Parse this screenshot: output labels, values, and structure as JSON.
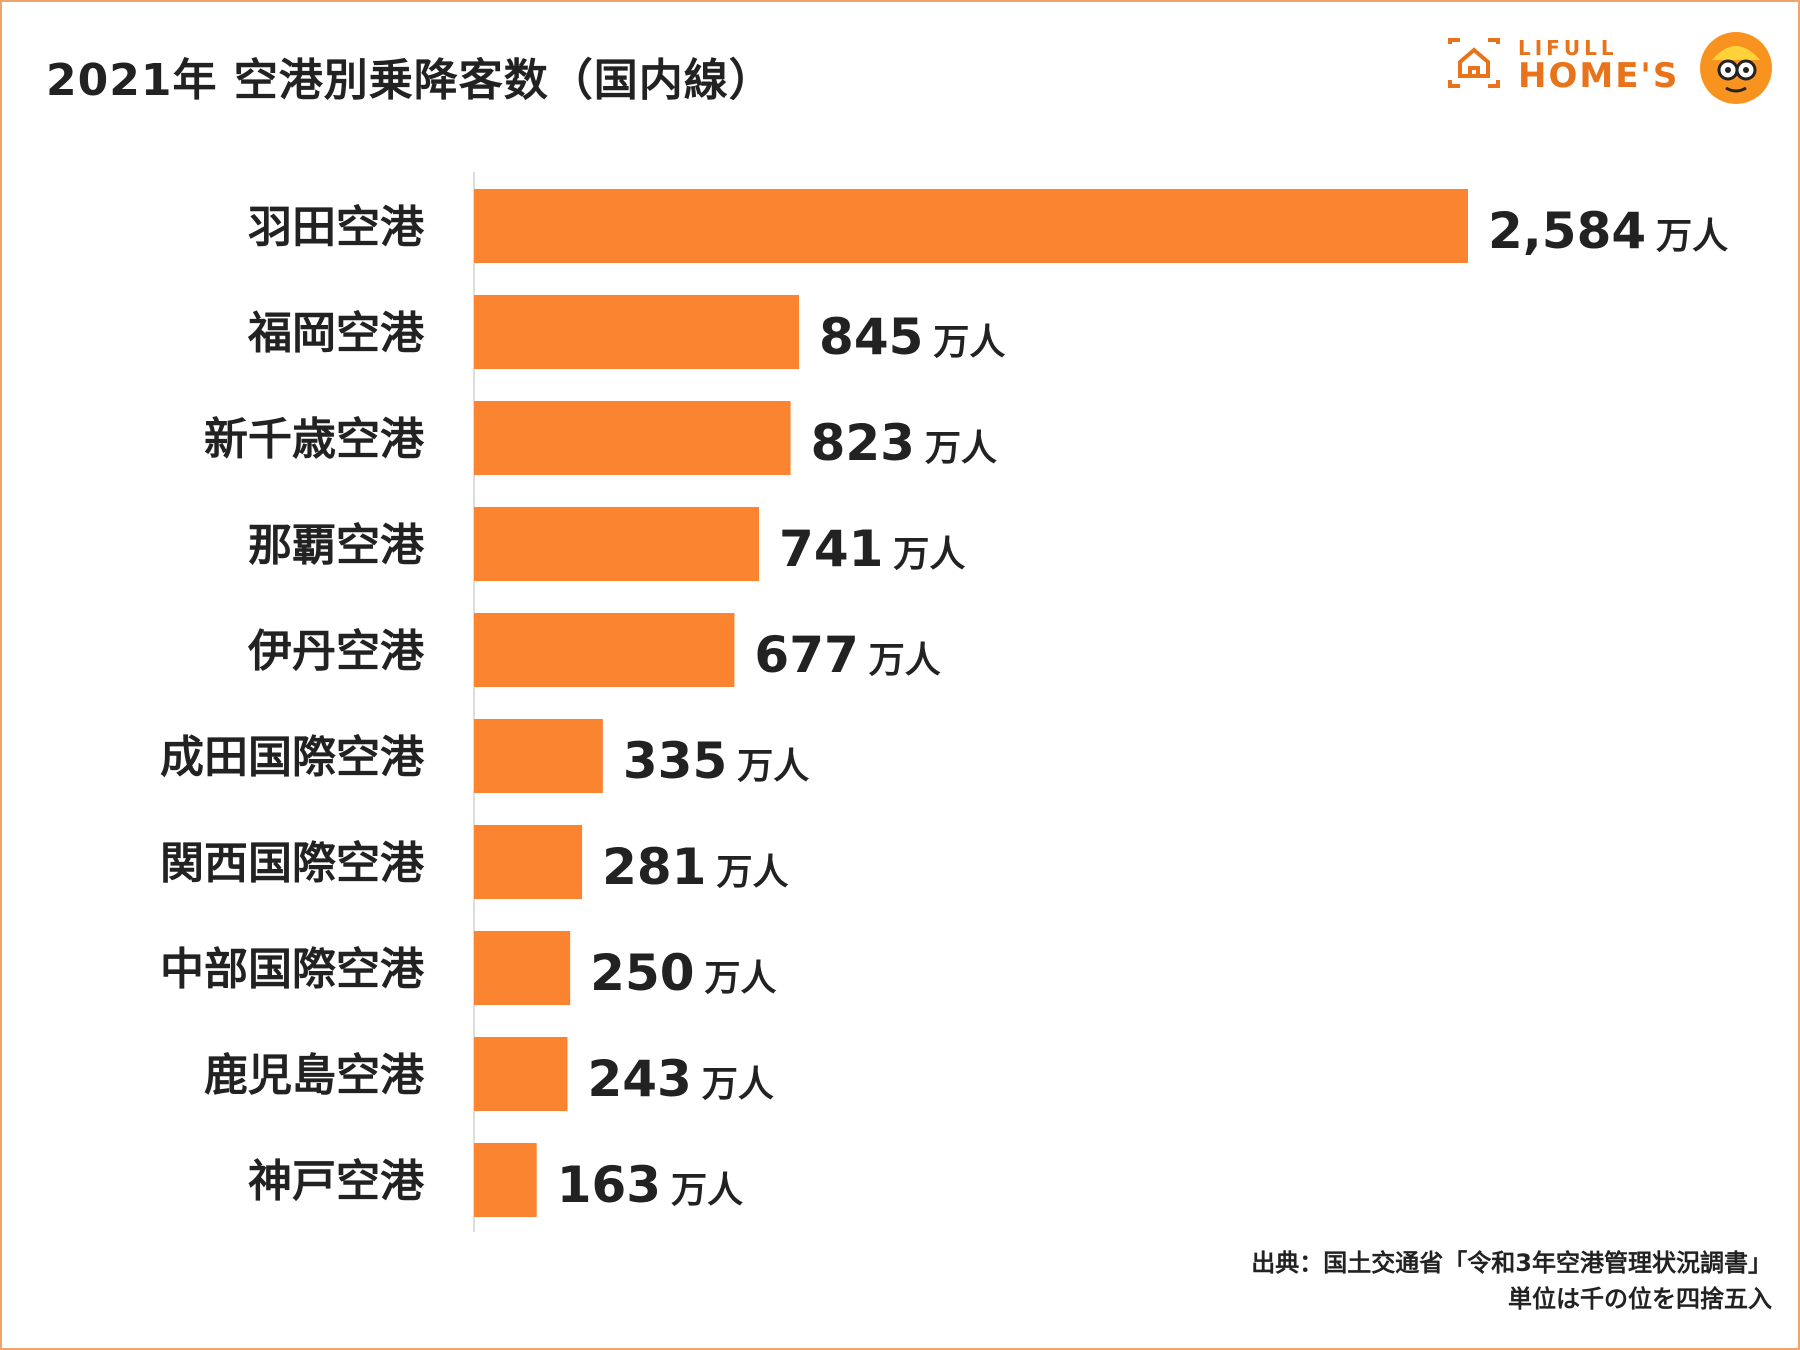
{
  "title": "2021年 空港別乗降客数（国内線）",
  "logo": {
    "line1": "LIFULL",
    "line2": "HOME'S"
  },
  "chart_data": {
    "type": "bar",
    "orientation": "horizontal",
    "title": "2021年 空港別乗降客数（国内線）",
    "unit": "万人",
    "categories": [
      "羽田空港",
      "福岡空港",
      "新千歳空港",
      "那覇空港",
      "伊丹空港",
      "成田国際空港",
      "関西国際空港",
      "中部国際空港",
      "鹿児島空港",
      "神戸空港"
    ],
    "values": [
      2584,
      845,
      823,
      741,
      677,
      335,
      281,
      250,
      243,
      163
    ],
    "value_labels": [
      "2,584",
      "845",
      "823",
      "741",
      "677",
      "335",
      "281",
      "250",
      "243",
      "163"
    ],
    "xlim": [
      0,
      2584
    ],
    "bar_color": "#fa8430",
    "grid": false,
    "legend": "none"
  },
  "source": {
    "line1": "出典：国土交通省「令和3年空港管理状況調書」",
    "line2": "単位は千の位を四捨五入"
  }
}
